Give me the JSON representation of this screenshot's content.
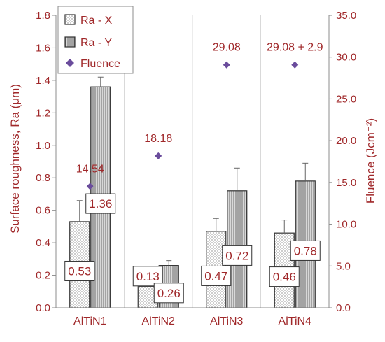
{
  "chart_data": {
    "type": "bar",
    "categories": [
      "AlTiN1",
      "AlTiN2",
      "AlTiN3",
      "AlTiN4"
    ],
    "series": [
      {
        "name": "Ra - X",
        "values": [
          0.53,
          0.13,
          0.47,
          0.46
        ],
        "errors": [
          0.13,
          0.02,
          0.08,
          0.08
        ],
        "labels": [
          "0.53",
          "0.13",
          "0.47",
          "0.46"
        ]
      },
      {
        "name": "Ra - Y",
        "values": [
          1.36,
          0.26,
          0.72,
          0.78
        ],
        "errors": [
          0.06,
          0.03,
          0.14,
          0.11
        ],
        "labels": [
          "1.36",
          "0.26",
          "0.72",
          "0.78"
        ]
      },
      {
        "name": "Fluence",
        "axis": "right",
        "values": [
          14.54,
          18.18,
          29.08,
          29.08
        ],
        "labels": [
          "14.54",
          "18.18",
          "29.08",
          "29.08 + 2.9"
        ]
      }
    ],
    "ylabel": "Surface roughness, Ra (μm)",
    "ylabel_right": "Fluence (Jcm⁻²)",
    "ylim": [
      0,
      1.8
    ],
    "ylim_right": [
      0,
      35
    ],
    "yticks": [
      "0.0",
      "0.2",
      "0.4",
      "0.6",
      "0.8",
      "1.0",
      "1.2",
      "1.4",
      "1.6",
      "1.8"
    ],
    "yticks_right": [
      "0.0",
      "5.0",
      "10.0",
      "15.0",
      "20.0",
      "25.0",
      "30.0",
      "35.0"
    ],
    "grid": "vertical",
    "legend_position": "top-left",
    "colors": {
      "text": "#a0282a",
      "marker": "#6a4c9c",
      "axis": "#8c8c8c",
      "bar_edge": "#333333"
    }
  }
}
